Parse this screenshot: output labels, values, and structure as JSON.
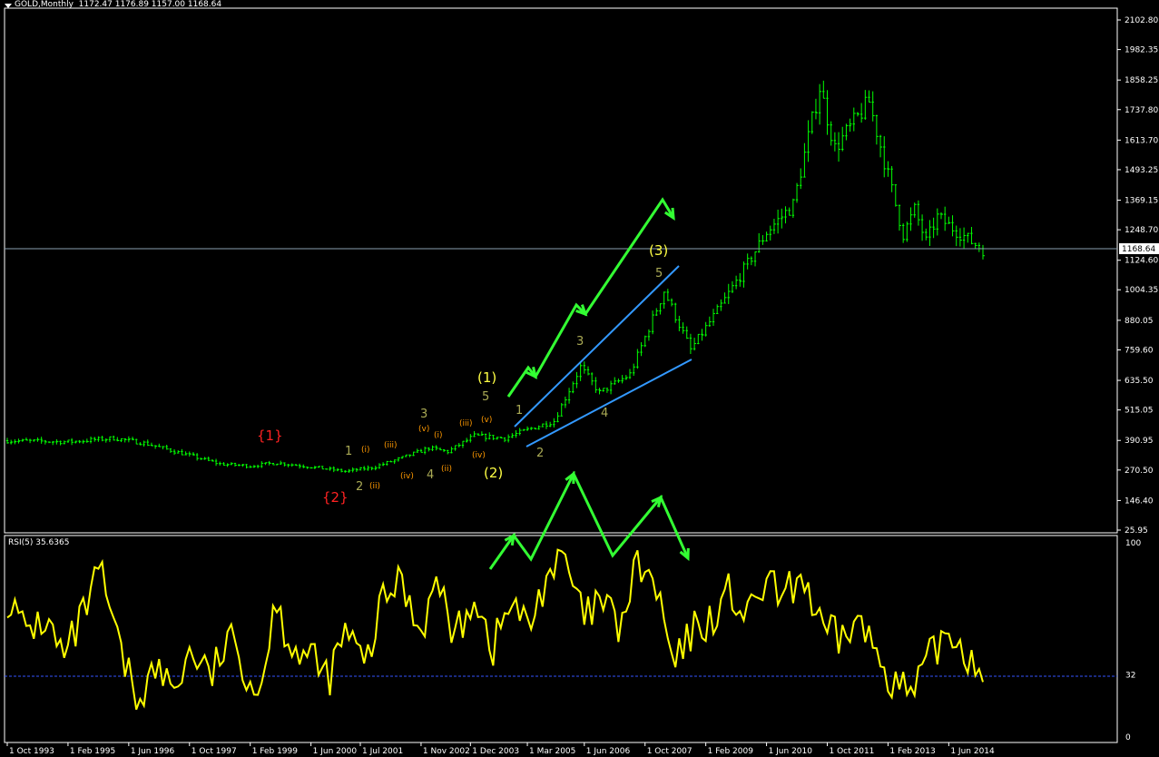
{
  "window": {
    "symbol": "GOLD,Monthly",
    "ohlc": "1172.47 1176.89 1157.00 1168.64",
    "last_price_label": "1168.64"
  },
  "rsi": {
    "label": "RSI(5) 35.6365",
    "period": 5,
    "current": 35.6365,
    "level": 32,
    "levels_shown": [
      "100",
      "32",
      "0"
    ]
  },
  "colors": {
    "background": "#000000",
    "candles": "#00ff00",
    "rsi_line": "#ffff00",
    "trendlines": "#3399ff",
    "arrows": "#33ff33",
    "labels_yellow": "#ffff44",
    "labels_red": "#ff2222",
    "labels_orange": "#ff9900",
    "labels_olive": "#aaaa55",
    "grid_text": "#ffffff",
    "rsi_level": "#3355ff"
  },
  "chart_data": {
    "type": "candlestick",
    "timeframe": "Monthly",
    "price_ticks": [
      "2102.80",
      "1982.35",
      "1858.25",
      "1737.80",
      "1613.70",
      "1493.25",
      "1369.15",
      "1248.70",
      "1124.60",
      "1004.35",
      "880.05",
      "759.60",
      "635.50",
      "515.05",
      "390.95",
      "270.50",
      "146.40",
      "25.95"
    ],
    "date_ticks": [
      "1 Oct 1993",
      "1 Feb 1995",
      "1 Jun 1996",
      "1 Oct 1997",
      "1 Feb 1999",
      "1 Jun 2000",
      "1 Jul 2001",
      "1 Nov 2002",
      "1 Dec 2003",
      "1 Mar 2005",
      "1 Jun 2006",
      "1 Oct 2007",
      "1 Feb 2009",
      "1 Jun 2010",
      "1 Oct 2011",
      "1 Feb 2013",
      "1 Jun 2014"
    ],
    "ylim": [
      25.95,
      2102.8
    ],
    "price_keypoints": [
      [
        "1993-10",
        390
      ],
      [
        "1995-02",
        385
      ],
      [
        "1996-02",
        400
      ],
      [
        "1996-10",
        380
      ],
      [
        "1997-10",
        330
      ],
      [
        "1998-06",
        295
      ],
      [
        "1999-02",
        287
      ],
      [
        "1999-09",
        300
      ],
      [
        "2000-06",
        283
      ],
      [
        "2001-03",
        265
      ],
      [
        "2001-10",
        280
      ],
      [
        "2002-06",
        320
      ],
      [
        "2003-01",
        360
      ],
      [
        "2003-06",
        345
      ],
      [
        "2004-01",
        410
      ],
      [
        "2004-09",
        400
      ],
      [
        "2005-03",
        435
      ],
      [
        "2005-10",
        470
      ],
      [
        "2006-05",
        690
      ],
      [
        "2006-10",
        585
      ],
      [
        "2007-06",
        660
      ],
      [
        "2008-03",
        1000
      ],
      [
        "2008-10",
        760
      ],
      [
        "2009-06",
        940
      ],
      [
        "2010-01",
        1110
      ],
      [
        "2010-06",
        1240
      ],
      [
        "2011-01",
        1350
      ],
      [
        "2011-08",
        1830
      ],
      [
        "2011-12",
        1580
      ],
      [
        "2012-09",
        1770
      ],
      [
        "2013-06",
        1230
      ],
      [
        "2013-09",
        1330
      ],
      [
        "2013-12",
        1200
      ],
      [
        "2014-03",
        1300
      ],
      [
        "2014-12",
        1200
      ],
      [
        "2015-03",
        1168.64
      ]
    ],
    "annotations": {
      "red": [
        "{1}",
        "{2}"
      ],
      "yellow": [
        "(1)",
        "(2)",
        "(3)"
      ],
      "olive": [
        "1",
        "2",
        "1",
        "2",
        "3",
        "4",
        "5",
        "3",
        "4",
        "5"
      ],
      "orange": [
        "(i)",
        "(ii)",
        "(iii)",
        "(iv)",
        "(v)",
        "(i)",
        "(ii)",
        "(iii)",
        "(iv)",
        "(v)"
      ]
    }
  }
}
